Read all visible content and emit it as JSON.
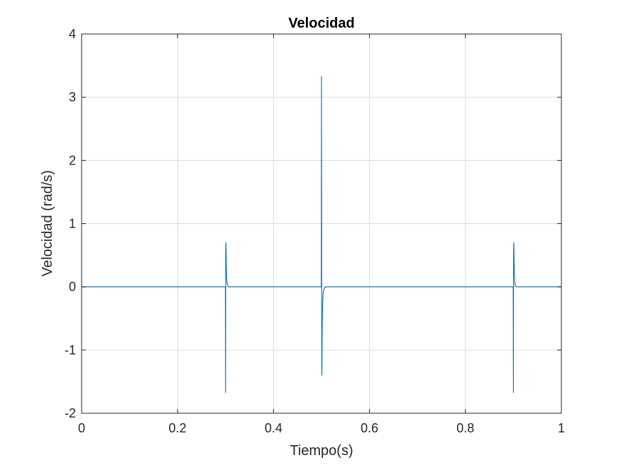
{
  "chart_data": {
    "type": "line",
    "title": "Velocidad",
    "xlabel": "Tiempo(s)",
    "ylabel": "Velocidad (rad/s)",
    "xlim": [
      0,
      1
    ],
    "ylim": [
      -2,
      4
    ],
    "xticks": [
      0,
      0.2,
      0.4,
      0.6,
      0.8,
      1
    ],
    "xtick_labels": [
      "0",
      "0.2",
      "0.4",
      "0.6",
      "0.8",
      "1"
    ],
    "yticks": [
      -2,
      -1,
      0,
      1,
      2,
      3,
      4
    ],
    "ytick_labels": [
      "-2",
      "-1",
      "0",
      "1",
      "2",
      "3",
      "4"
    ],
    "grid": true,
    "series": [
      {
        "color": "#0072BD",
        "x": [
          0,
          0.2995,
          0.3,
          0.3003,
          0.3006,
          0.301,
          0.3013,
          0.3016,
          0.302,
          0.3026,
          0.3035,
          0.305,
          0.307,
          0.31,
          0.4995,
          0.5,
          0.5005,
          0.5008,
          0.501,
          0.5013,
          0.5018,
          0.5025,
          0.5035,
          0.505,
          0.507,
          0.51,
          0.8995,
          0.9,
          0.9003,
          0.9006,
          0.901,
          0.9013,
          0.9016,
          0.902,
          0.9026,
          0.9035,
          0.905,
          0.907,
          0.91,
          1
        ],
        "y": [
          0,
          0,
          -1.67,
          0.5,
          0.7,
          0.65,
          0.5,
          0.35,
          0.2,
          0.1,
          0.04,
          0.01,
          0,
          0,
          0,
          3.33,
          -1.1,
          -1.4,
          -1.2,
          -0.8,
          -0.45,
          -0.22,
          -0.1,
          -0.03,
          -0.01,
          0,
          0,
          -1.67,
          0.5,
          0.7,
          0.65,
          0.5,
          0.35,
          0.2,
          0.1,
          0.04,
          0.01,
          0,
          0,
          0
        ]
      }
    ]
  }
}
